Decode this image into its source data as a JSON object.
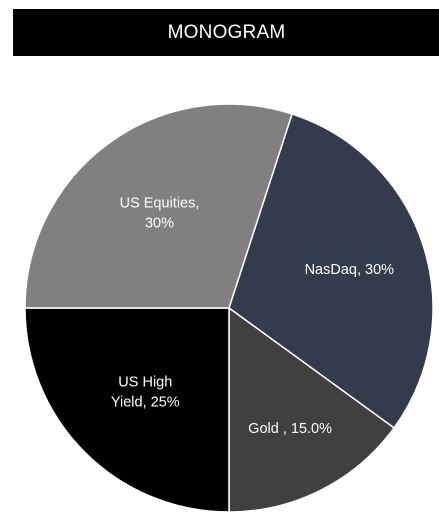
{
  "chart_data": {
    "type": "pie",
    "title": "MONOGRAM",
    "slices": [
      {
        "label": "NasDaq",
        "value": 30,
        "display": "30%",
        "color": "#333b4d",
        "label_lines": [
          "NasDaq, 30%"
        ]
      },
      {
        "label": "Gold",
        "value": 15,
        "display": "15.0%",
        "color": "#404040",
        "label_lines": [
          "Gold , 15.0%"
        ]
      },
      {
        "label": "US High Yield",
        "value": 25,
        "display": "25%",
        "color": "#000000",
        "label_lines": [
          "US High",
          "Yield, 25%"
        ]
      },
      {
        "label": "US Equities",
        "value": 30,
        "display": "30%",
        "color": "#808080",
        "label_lines": [
          "US Equities,",
          "30%"
        ]
      }
    ],
    "start_angle_deg": 72,
    "direction": "clockwise",
    "legend": "none",
    "slice_border_color": "#ffffff"
  }
}
